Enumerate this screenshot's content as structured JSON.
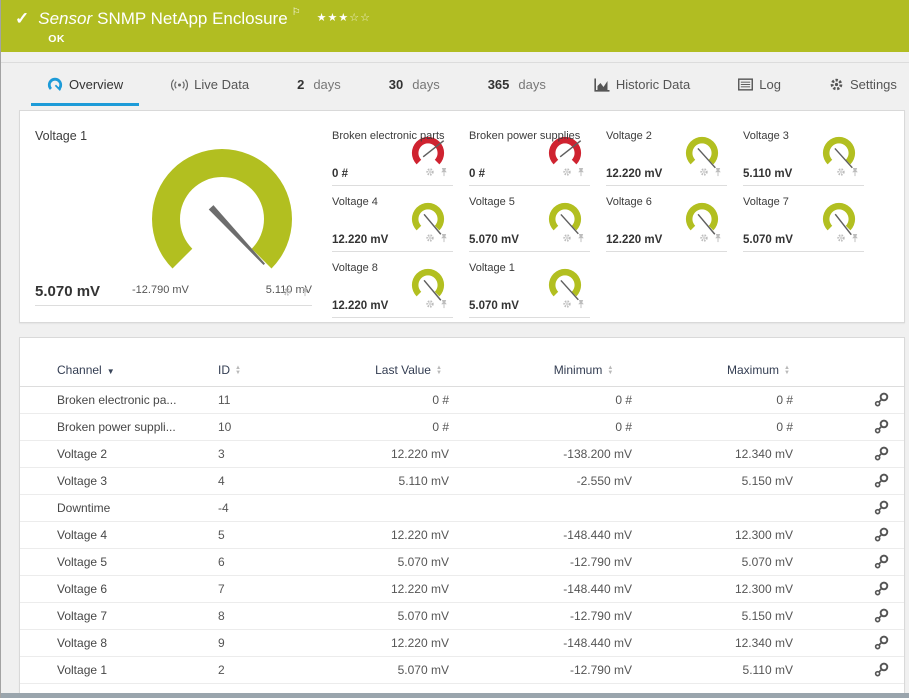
{
  "header": {
    "check": "✓",
    "kind": "Sensor",
    "title": "SNMP NetApp Enclosure",
    "flag": "⚐",
    "stars_filled": "★★★",
    "stars_empty": "☆☆",
    "status": "OK",
    "bg_color": "#b1bd22"
  },
  "tabs": {
    "overview": "Overview",
    "live_data": "Live Data",
    "days2_num": "2",
    "days2_unit": "days",
    "days30_num": "30",
    "days30_unit": "days",
    "days365_num": "365",
    "days365_unit": "days",
    "historic": "Historic Data",
    "log": "Log",
    "settings": "Settings",
    "active_tab": "Overview",
    "accent_color": "#1d9bd8"
  },
  "gauges": {
    "ok_color": "#b2bf20",
    "error_color": "#cf2330",
    "primary": {
      "label": "Voltage 1",
      "value": "5.070 mV",
      "min": "-12.790 mV",
      "max": "5.110 mV",
      "color": "#b2bf20",
      "angle": 47
    },
    "small": [
      {
        "label": "Broken electronic parts",
        "value": "0 #",
        "color": "#cf2330",
        "angle": -38
      },
      {
        "label": "Broken power supplies",
        "value": "0 #",
        "color": "#cf2330",
        "angle": -38
      },
      {
        "label": "Voltage 2",
        "value": "12.220 mV",
        "color": "#b2bf20",
        "angle": 48
      },
      {
        "label": "Voltage 3",
        "value": "5.110 mV",
        "color": "#b2bf20",
        "angle": 48
      },
      {
        "label": "Voltage 4",
        "value": "12.220 mV",
        "color": "#b2bf20",
        "angle": 50
      },
      {
        "label": "Voltage 5",
        "value": "5.070 mV",
        "color": "#b2bf20",
        "angle": 48
      },
      {
        "label": "Voltage 6",
        "value": "12.220 mV",
        "color": "#b2bf20",
        "angle": 50
      },
      {
        "label": "Voltage 7",
        "value": "5.070 mV",
        "color": "#b2bf20",
        "angle": 52
      },
      {
        "label": "Voltage 8",
        "value": "12.220 mV",
        "color": "#b2bf20",
        "angle": 50
      },
      {
        "label": "Voltage 1",
        "value": "5.070 mV",
        "color": "#b2bf20",
        "angle": 48
      }
    ]
  },
  "table": {
    "columns": {
      "channel": "Channel",
      "id": "ID",
      "last": "Last Value",
      "min": "Minimum",
      "max": "Maximum"
    },
    "sorted_by": "Channel",
    "rows": [
      {
        "channel": "Broken electronic pa...",
        "id": "11",
        "last": "0 #",
        "min": "0 #",
        "max": "0 #"
      },
      {
        "channel": "Broken power suppli...",
        "id": "10",
        "last": "0 #",
        "min": "0 #",
        "max": "0 #"
      },
      {
        "channel": "Voltage 2",
        "id": "3",
        "last": "12.220 mV",
        "min": "-138.200 mV",
        "max": "12.340 mV"
      },
      {
        "channel": "Voltage 3",
        "id": "4",
        "last": "5.110 mV",
        "min": "-2.550 mV",
        "max": "5.150 mV"
      },
      {
        "channel": "Downtime",
        "id": "-4",
        "last": "",
        "min": "",
        "max": ""
      },
      {
        "channel": "Voltage 4",
        "id": "5",
        "last": "12.220 mV",
        "min": "-148.440 mV",
        "max": "12.300 mV"
      },
      {
        "channel": "Voltage 5",
        "id": "6",
        "last": "5.070 mV",
        "min": "-12.790 mV",
        "max": "5.070 mV"
      },
      {
        "channel": "Voltage 6",
        "id": "7",
        "last": "12.220 mV",
        "min": "-148.440 mV",
        "max": "12.300 mV"
      },
      {
        "channel": "Voltage 7",
        "id": "8",
        "last": "5.070 mV",
        "min": "-12.790 mV",
        "max": "5.150 mV"
      },
      {
        "channel": "Voltage 8",
        "id": "9",
        "last": "12.220 mV",
        "min": "-148.440 mV",
        "max": "12.340 mV"
      },
      {
        "channel": "Voltage 1",
        "id": "2",
        "last": "5.070 mV",
        "min": "-12.790 mV",
        "max": "5.110 mV"
      }
    ]
  }
}
